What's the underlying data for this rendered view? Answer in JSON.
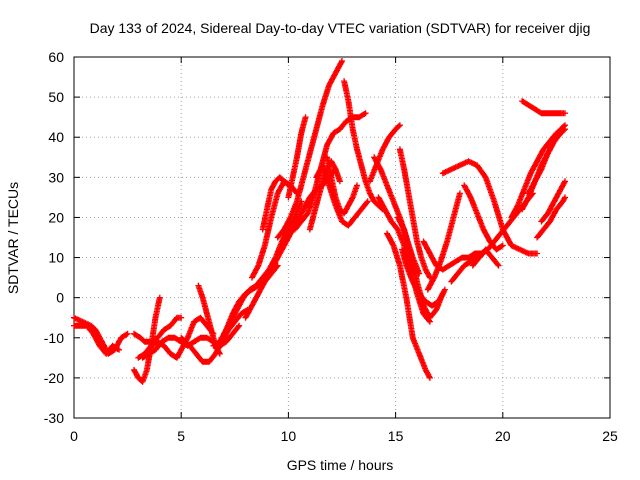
{
  "chart_data": {
    "type": "scatter",
    "title": "Day 133 of 2024, Sidereal Day-to-day VTEC variation (SDTVAR) for receiver djig",
    "xlabel": "GPS time / hours",
    "ylabel": "SDTVAR / TECUs",
    "xlim": [
      0,
      25
    ],
    "ylim": [
      -30,
      60
    ],
    "xticks": [
      0,
      5,
      10,
      15,
      20,
      25
    ],
    "yticks": [
      -30,
      -20,
      -10,
      0,
      10,
      20,
      30,
      40,
      50,
      60
    ],
    "xtick_labels": [
      "0",
      "5",
      "10",
      "15",
      "20",
      "25"
    ],
    "ytick_labels": [
      "-30",
      "-20",
      "-10",
      "0",
      "10",
      "20",
      "30",
      "40",
      "50",
      "60"
    ],
    "grid": true,
    "grid_style": "dotted",
    "marker": "+",
    "marker_color": "#ff0000",
    "series": [
      {
        "x": [
          0.0,
          0.4,
          0.8,
          1.0,
          1.3,
          1.6,
          1.9,
          2.2,
          2.5
        ],
        "y": [
          -5,
          -6,
          -7,
          -8,
          -11,
          -14,
          -13,
          -10,
          -9
        ]
      },
      {
        "x": [
          0.0,
          0.3,
          0.6,
          0.9,
          1.2,
          1.5,
          1.8,
          2.1
        ],
        "y": [
          -7,
          -7,
          -7,
          -9,
          -12,
          -14,
          -12,
          -13
        ]
      },
      {
        "x": [
          2.8,
          3.1,
          3.3,
          3.6,
          3.9,
          4.2,
          4.5,
          4.8,
          5.0
        ],
        "y": [
          -9,
          -10,
          -11,
          -11,
          -10,
          -8,
          -7,
          -5,
          -5
        ]
      },
      {
        "x": [
          2.8,
          3.0,
          3.2,
          3.4,
          3.6,
          3.8,
          4.0
        ],
        "y": [
          -18,
          -20,
          -21,
          -18,
          -12,
          -5,
          0
        ]
      },
      {
        "x": [
          3.0,
          3.3,
          3.6,
          3.9,
          4.2,
          4.5,
          4.8,
          5.0,
          5.3,
          5.6,
          5.9,
          6.2,
          6.5
        ],
        "y": [
          -15,
          -14,
          -12,
          -11,
          -12,
          -14,
          -15,
          -13,
          -10,
          -6,
          -5,
          -7,
          -9
        ]
      },
      {
        "x": [
          3.2,
          3.5,
          3.8,
          4.1,
          4.4,
          4.7,
          5.0,
          5.3,
          5.6,
          5.9,
          6.2,
          6.5,
          6.8,
          7.1,
          7.4,
          7.7
        ],
        "y": [
          -15,
          -14,
          -13,
          -11,
          -10,
          -10,
          -11,
          -12,
          -11,
          -10,
          -10,
          -11,
          -12,
          -11,
          -9,
          -7
        ]
      },
      {
        "x": [
          5.0,
          5.4,
          5.7,
          6.0,
          6.3,
          6.6,
          6.9,
          7.2,
          7.5,
          7.8,
          8.1
        ],
        "y": [
          -10,
          -12,
          -14,
          -16,
          -16,
          -14,
          -11,
          -8,
          -6,
          -4,
          -3
        ]
      },
      {
        "x": [
          5.8,
          6.0,
          6.2,
          6.4,
          6.6,
          6.8
        ],
        "y": [
          3,
          0,
          -4,
          -8,
          -12,
          -14
        ]
      },
      {
        "x": [
          6.5,
          6.8,
          7.1,
          7.4,
          7.7,
          8.0,
          8.3,
          8.6,
          8.9,
          9.2,
          9.5
        ],
        "y": [
          -12,
          -11,
          -8,
          -4,
          -1,
          1,
          2,
          3,
          4,
          6,
          8
        ]
      },
      {
        "x": [
          7.0,
          7.3,
          7.6,
          7.9,
          8.2,
          8.5,
          8.8,
          9.1,
          9.4,
          9.7,
          10.0,
          10.3,
          10.6
        ],
        "y": [
          -9,
          -6,
          -3,
          0,
          2,
          3,
          5,
          7,
          10,
          14,
          17,
          20,
          24
        ]
      },
      {
        "x": [
          8.0,
          8.3,
          8.6,
          8.9,
          9.2,
          9.5,
          9.8,
          10.1,
          10.4,
          10.7,
          11.0,
          11.3,
          11.6,
          11.9,
          12.2
        ],
        "y": [
          -5,
          -2,
          1,
          4,
          7,
          10,
          13,
          16,
          19,
          22,
          25,
          27,
          28,
          30,
          32
        ]
      },
      {
        "x": [
          8.3,
          8.6,
          8.9,
          9.2,
          9.5,
          9.8,
          10.1,
          10.4
        ],
        "y": [
          5,
          8,
          13,
          20,
          26,
          29,
          28,
          26
        ]
      },
      {
        "x": [
          8.8,
          9.0,
          9.2,
          9.4,
          9.6,
          9.8,
          10.0
        ],
        "y": [
          17,
          22,
          27,
          29,
          30,
          29,
          28
        ]
      },
      {
        "x": [
          9.5,
          9.8,
          10.1,
          10.4,
          10.6,
          10.8,
          11.0,
          11.3,
          11.6,
          11.9,
          12.2,
          12.5
        ],
        "y": [
          15,
          17,
          20,
          24,
          28,
          32,
          36,
          42,
          48,
          53,
          56,
          59
        ]
      },
      {
        "x": [
          10.0,
          10.2,
          10.4,
          10.6,
          10.8
        ],
        "y": [
          25,
          30,
          35,
          41,
          45
        ]
      },
      {
        "x": [
          10.3,
          10.6,
          10.9,
          11.2,
          11.5,
          11.8,
          12.1,
          12.4,
          12.7,
          13.0,
          13.3,
          13.6
        ],
        "y": [
          17,
          19,
          21,
          26,
          32,
          38,
          41,
          42,
          44,
          45,
          45,
          46
        ]
      },
      {
        "x": [
          11.0,
          11.2,
          11.4,
          11.6,
          11.8,
          12.0,
          12.2,
          12.4
        ],
        "y": [
          17,
          21,
          25,
          29,
          32,
          34,
          32,
          29
        ]
      },
      {
        "x": [
          11.3,
          11.6,
          11.9,
          12.2,
          12.5,
          12.8,
          13.1,
          13.4,
          13.7
        ],
        "y": [
          30,
          33,
          28,
          23,
          19,
          18,
          20,
          22,
          24
        ]
      },
      {
        "x": [
          11.8,
          12.0,
          12.2,
          12.4,
          12.6,
          12.8,
          13.0,
          13.2
        ],
        "y": [
          35,
          30,
          25,
          22,
          21,
          23,
          25,
          28
        ]
      },
      {
        "x": [
          12.6,
          12.8,
          13.0,
          13.2,
          13.4,
          13.6,
          13.8,
          14.0,
          14.2,
          14.4
        ],
        "y": [
          54,
          49,
          42,
          37,
          33,
          29,
          26,
          24,
          23,
          22
        ]
      },
      {
        "x": [
          13.8,
          14.1,
          14.4,
          14.7,
          15.0,
          15.2
        ],
        "y": [
          29,
          33,
          37,
          40,
          42,
          43
        ]
      },
      {
        "x": [
          14.0,
          14.3,
          14.6,
          14.9,
          15.2,
          15.5,
          15.8,
          16.1
        ],
        "y": [
          35,
          32,
          28,
          24,
          20,
          15,
          10,
          6
        ]
      },
      {
        "x": [
          14.2,
          14.5,
          14.8,
          15.1,
          15.4,
          15.7,
          16.0,
          16.3,
          16.6
        ],
        "y": [
          25,
          22,
          19,
          17,
          13,
          7,
          1,
          -4,
          -6
        ]
      },
      {
        "x": [
          14.6,
          14.9,
          15.2,
          15.5,
          15.8,
          16.1,
          16.4,
          16.6
        ],
        "y": [
          16,
          13,
          8,
          0,
          -10,
          -14,
          -18,
          -20
        ]
      },
      {
        "x": [
          15.1,
          15.4,
          15.7,
          16.0,
          16.3,
          16.6,
          16.9,
          17.2
        ],
        "y": [
          20,
          17,
          11,
          4,
          -2,
          -5,
          -3,
          1
        ]
      },
      {
        "x": [
          15.3,
          15.5,
          15.8,
          16.1,
          16.4,
          16.7,
          17.0,
          17.3
        ],
        "y": [
          12,
          8,
          4,
          1,
          -1,
          -2,
          -1,
          2
        ]
      },
      {
        "x": [
          15.2,
          15.4,
          15.6,
          15.8,
          16.0,
          16.2,
          16.4,
          16.6
        ],
        "y": [
          37,
          32,
          26,
          20,
          14,
          10,
          7,
          5
        ]
      },
      {
        "x": [
          16.3,
          16.6,
          16.9,
          17.2,
          17.5,
          17.8,
          18.1,
          18.4,
          18.7,
          19.0,
          19.3,
          19.6,
          19.9,
          20.2,
          20.5,
          20.8,
          21.1,
          21.4
        ],
        "y": [
          14,
          11,
          8,
          7,
          8,
          9,
          10,
          10,
          11,
          11,
          12,
          14,
          16,
          18,
          20,
          22,
          24,
          26
        ]
      },
      {
        "x": [
          16.5,
          16.8,
          17.1,
          17.4,
          17.7,
          18.0
        ],
        "y": [
          2,
          5,
          9,
          14,
          20,
          26
        ]
      },
      {
        "x": [
          17.2,
          17.6,
          18.0,
          18.4,
          18.8,
          19.2,
          19.6,
          20.0,
          20.4,
          20.8,
          21.2,
          21.6
        ],
        "y": [
          31,
          32,
          33,
          34,
          33,
          30,
          24,
          17,
          13,
          12,
          11,
          11
        ]
      },
      {
        "x": [
          17.6,
          17.9,
          18.2,
          18.5,
          18.8,
          19.1
        ],
        "y": [
          4,
          6,
          8,
          9,
          10,
          11
        ]
      },
      {
        "x": [
          18.6,
          18.9,
          19.2,
          19.5,
          19.8
        ],
        "y": [
          8,
          10,
          12,
          10,
          8
        ]
      },
      {
        "x": [
          18.2,
          18.5,
          18.8,
          19.1,
          19.4,
          19.7,
          20.0
        ],
        "y": [
          28,
          25,
          21,
          17,
          14,
          12,
          13
        ]
      },
      {
        "x": [
          20.9,
          21.2,
          21.5,
          21.8,
          22.1,
          22.4,
          22.7,
          22.9
        ],
        "y": [
          49,
          48,
          47,
          46,
          46,
          46,
          46,
          46
        ]
      },
      {
        "x": [
          20.4,
          20.7,
          21.0,
          21.3,
          21.6,
          21.9,
          22.2,
          22.5,
          22.8
        ],
        "y": [
          20,
          23,
          27,
          31,
          34,
          37,
          39,
          41,
          42
        ]
      },
      {
        "x": [
          20.9,
          21.2,
          21.5,
          21.8,
          22.1,
          22.4,
          22.7,
          22.9
        ],
        "y": [
          22,
          25,
          29,
          33,
          36,
          39,
          42,
          43
        ]
      },
      {
        "x": [
          21.2,
          21.5,
          21.8,
          22.1,
          22.4,
          22.7,
          22.9
        ],
        "y": [
          26,
          29,
          32,
          36,
          39,
          41,
          42
        ]
      },
      {
        "x": [
          21.6,
          21.9,
          22.2,
          22.5,
          22.8,
          22.9
        ],
        "y": [
          15,
          17,
          19,
          22,
          24,
          25
        ]
      },
      {
        "x": [
          21.8,
          22.1,
          22.4,
          22.7,
          22.9
        ],
        "y": [
          19,
          21,
          24,
          27,
          29
        ]
      }
    ]
  }
}
